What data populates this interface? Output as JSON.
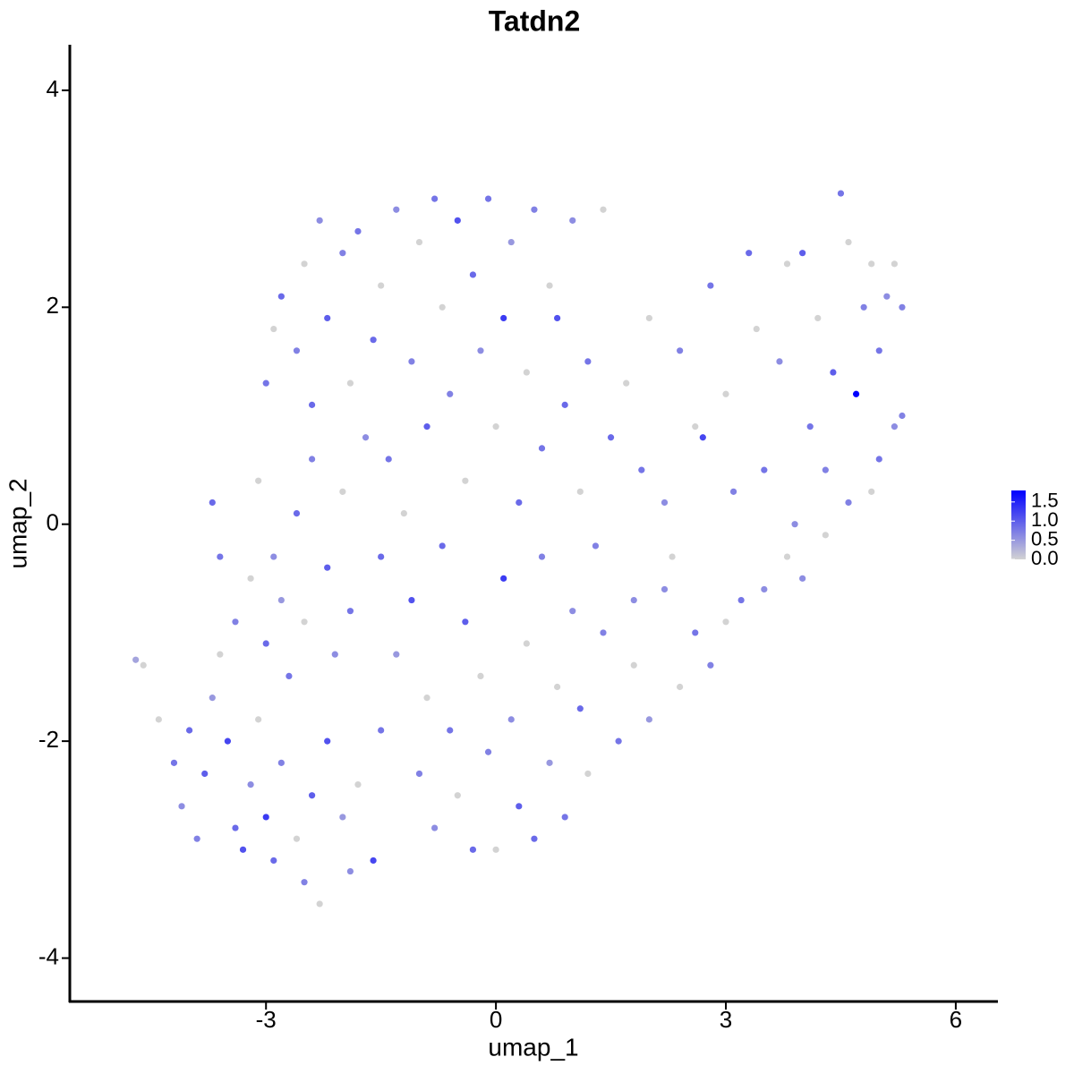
{
  "chart_data": {
    "type": "scatter",
    "title": "Tatdn2",
    "x_label": "umap_1",
    "y_label": "umap_2",
    "xlim": [
      -5.56,
      6.55
    ],
    "ylim": [
      -4.4,
      4.42
    ],
    "xticks": [
      -3,
      0,
      3,
      6
    ],
    "yticks": [
      -4,
      -2,
      0,
      2,
      4
    ],
    "colorbar": {
      "lim": [
        0,
        1.8
      ],
      "ticks": [
        {
          "value": 0,
          "label": "0.0"
        },
        0.5,
        {
          "value": 1,
          "label": "1.0"
        },
        1.5
      ],
      "low_color": "#d3d3d3",
      "high_color": "#0000ff"
    },
    "x": [
      -4.7,
      -4.6,
      -4.4,
      -4.2,
      -4.0,
      -4.1,
      -3.9,
      -3.8,
      -3.7,
      -3.6,
      -3.5,
      -3.4,
      -3.3,
      -3.2,
      -3.1,
      -3.0,
      -2.9,
      -2.8,
      -2.7,
      -2.6,
      -2.5,
      -2.4,
      -2.3,
      -2.2,
      -2.1,
      -2.0,
      -1.9,
      -1.8,
      -1.6,
      -1.5,
      -3.4,
      -3.2,
      -3.0,
      -2.9,
      -3.6,
      -3.7,
      -3.1,
      -2.8,
      -2.6,
      -2.5,
      -2.4,
      -2.2,
      -2.0,
      -1.9,
      -1.7,
      -1.5,
      -1.3,
      -1.2,
      -1.1,
      -1.0,
      -0.9,
      -0.8,
      -0.7,
      -0.6,
      -0.5,
      -0.4,
      -0.3,
      -0.2,
      -0.1,
      0.0,
      0.1,
      0.2,
      0.3,
      0.4,
      0.5,
      0.6,
      0.7,
      0.8,
      0.9,
      1.0,
      1.1,
      1.2,
      1.4,
      1.6,
      1.8,
      2.0,
      2.2,
      2.4,
      2.6,
      2.8,
      3.0,
      3.2,
      3.5,
      3.8,
      4.0,
      4.3,
      4.6,
      4.9,
      5.0,
      5.2,
      5.3,
      -3.0,
      -2.9,
      -2.8,
      -2.6,
      -2.5,
      -2.4,
      -2.3,
      -2.2,
      -2.0,
      -1.9,
      -1.8,
      -1.6,
      -1.5,
      -1.4,
      -1.3,
      -1.1,
      -1.0,
      -0.9,
      -0.8,
      -0.7,
      -0.6,
      -0.5,
      -0.4,
      -0.3,
      -0.2,
      -0.1,
      0.0,
      0.1,
      0.2,
      0.3,
      0.4,
      0.5,
      0.6,
      0.7,
      0.8,
      0.9,
      1.0,
      1.1,
      1.2,
      1.3,
      1.4,
      1.5,
      1.7,
      1.9,
      2.0,
      2.2,
      2.4,
      2.6,
      2.7,
      2.8,
      3.0,
      3.1,
      3.3,
      3.4,
      3.5,
      3.7,
      3.8,
      4.0,
      4.1,
      4.2,
      4.3,
      4.4,
      4.5,
      4.6,
      4.7,
      4.8,
      4.9,
      5.0,
      5.1,
      5.2,
      5.3,
      3.9,
      2.3,
      1.8
    ],
    "y": [
      -1.25,
      -1.3,
      -1.8,
      -2.2,
      -1.9,
      -2.6,
      -2.9,
      -2.3,
      -1.6,
      -1.2,
      -2.0,
      -2.8,
      -3.0,
      -2.4,
      -1.8,
      -2.7,
      -3.1,
      -2.2,
      -1.4,
      -2.9,
      -3.3,
      -2.5,
      -3.5,
      -2.0,
      -1.2,
      -2.7,
      -3.2,
      -2.4,
      -3.1,
      -1.9,
      -0.9,
      -0.5,
      -1.1,
      -0.3,
      -0.3,
      0.2,
      0.4,
      -0.7,
      0.1,
      -0.9,
      0.6,
      -0.4,
      0.3,
      -0.8,
      0.8,
      -0.3,
      -1.2,
      0.1,
      -0.7,
      -2.3,
      -1.6,
      -2.8,
      -0.2,
      -1.9,
      -2.5,
      -0.9,
      -3.0,
      -1.4,
      -2.1,
      -3.0,
      -0.5,
      -1.8,
      -2.6,
      -1.1,
      -2.9,
      -0.3,
      -2.2,
      -1.5,
      -2.7,
      -0.8,
      -1.7,
      -2.3,
      -1.0,
      -2.0,
      -1.3,
      -1.8,
      -0.6,
      -1.5,
      -1.0,
      -1.3,
      -0.9,
      -0.7,
      -0.6,
      -0.3,
      -0.5,
      -0.1,
      0.2,
      0.3,
      0.6,
      0.9,
      1.0,
      1.3,
      1.8,
      2.1,
      1.6,
      2.4,
      1.1,
      2.8,
      1.9,
      2.5,
      1.3,
      2.7,
      1.7,
      2.2,
      0.6,
      2.9,
      1.5,
      2.6,
      0.9,
      3.0,
      2.0,
      1.2,
      2.8,
      0.4,
      2.3,
      1.6,
      3.0,
      0.9,
      1.9,
      2.6,
      0.2,
      1.4,
      2.9,
      0.7,
      2.2,
      1.9,
      1.1,
      2.8,
      0.3,
      1.5,
      -0.2,
      2.9,
      0.8,
      1.3,
      0.5,
      1.9,
      0.2,
      1.6,
      0.9,
      0.8,
      2.2,
      1.2,
      0.3,
      2.5,
      1.8,
      0.5,
      1.5,
      2.4,
      2.5,
      0.9,
      1.9,
      0.5,
      1.4,
      3.05,
      2.6,
      1.2,
      2.0,
      2.4,
      1.6,
      2.1,
      2.4,
      2.0,
      0.0,
      -0.3,
      -0.7
    ],
    "values": [
      0.4,
      0,
      0,
      0.8,
      0.9,
      0.6,
      0.7,
      1.0,
      0.5,
      0,
      1.2,
      0.9,
      1.1,
      0.6,
      0,
      1.3,
      0.9,
      0.7,
      0.8,
      0,
      0.7,
      1.0,
      0,
      1.1,
      0.6,
      0.5,
      0.6,
      0,
      1.2,
      0.8,
      0.7,
      0,
      0.9,
      0.6,
      0.8,
      0.9,
      0,
      0.5,
      0.9,
      0,
      0.7,
      1.0,
      0,
      0.8,
      0.6,
      0.9,
      0.5,
      0,
      1.1,
      0.7,
      0,
      0.6,
      0.9,
      0.8,
      0,
      1.0,
      0.9,
      0,
      0.7,
      0,
      1.3,
      0.6,
      1.0,
      0,
      0.9,
      0.7,
      0.5,
      0,
      0.8,
      0.6,
      0.9,
      0,
      0.7,
      0.8,
      0,
      0.5,
      0.6,
      0,
      0.8,
      0.7,
      0,
      0.8,
      0.6,
      0,
      0.6,
      0,
      0.7,
      0,
      0.8,
      0.6,
      0.7,
      0.8,
      0,
      0.9,
      0.7,
      0,
      0.9,
      0.6,
      1.0,
      0.7,
      0,
      0.8,
      0.9,
      0,
      0.8,
      0.6,
      0.7,
      0,
      1.0,
      0.8,
      0,
      0.7,
      1.1,
      0,
      0.9,
      0.6,
      0.8,
      0,
      1.3,
      0.5,
      0.9,
      0,
      0.7,
      0.8,
      0,
      1.1,
      0.9,
      0.6,
      0,
      0.8,
      0.7,
      0,
      0.9,
      0,
      0.8,
      0,
      0.6,
      0.7,
      0,
      1.2,
      0.8,
      0,
      0.7,
      0.9,
      0,
      0.8,
      0.6,
      0,
      1.0,
      0.8,
      0,
      0.7,
      1.0,
      0.8,
      0,
      1.8,
      0.7,
      0,
      0.8,
      0.6,
      0,
      0.7,
      0.6,
      0,
      0.6
    ]
  }
}
